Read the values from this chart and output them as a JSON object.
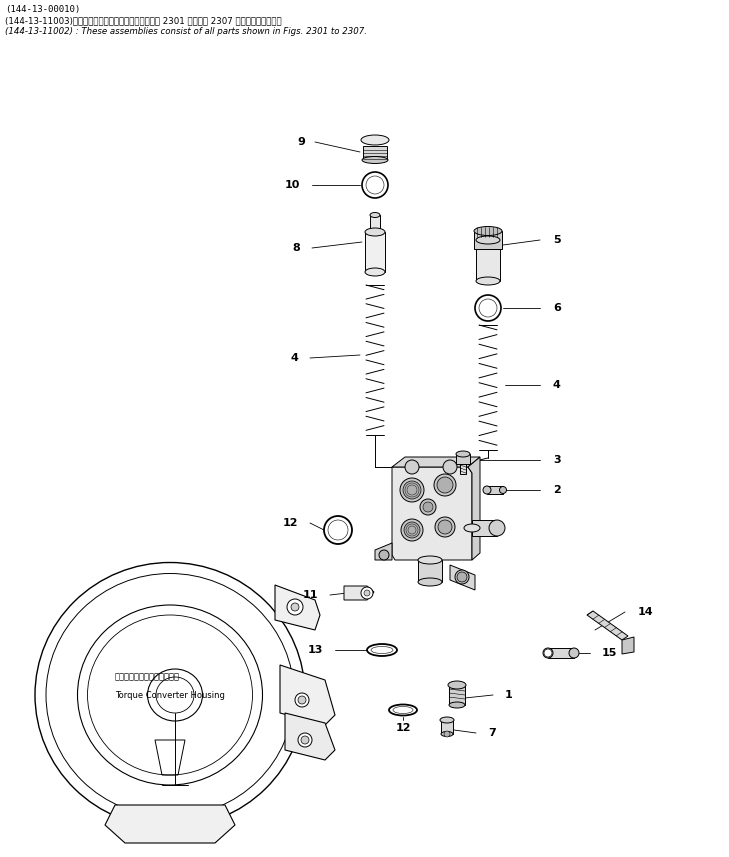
{
  "bg_color": "#ffffff",
  "line_color": "#000000",
  "header_lines": [
    "(144-13-00010)",
    "(144-13-11003)　これらのアセンブリの構成部品は第 2301 図から第 2307 図までございます．",
    "(144-13-11002) : These assemblies consist of all parts shown in Figs. 2301 to 2307."
  ],
  "torque_converter_label_jp": "トルクコンバータハウジング",
  "torque_converter_label_en": "Torque Converter Housing",
  "lw": 0.7
}
